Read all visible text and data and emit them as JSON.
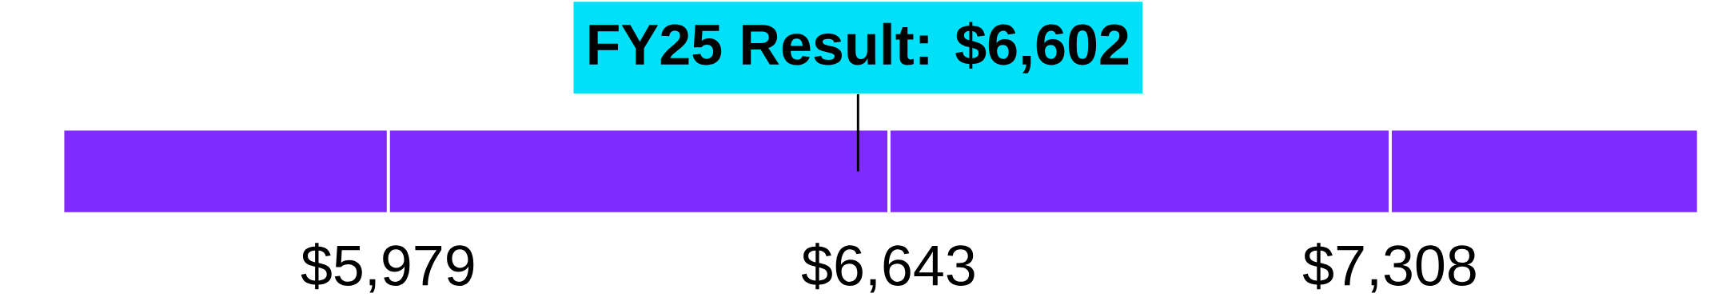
{
  "chart_data": {
    "type": "bar",
    "orientation": "horizontal",
    "categories": [
      null
    ],
    "series": [
      {
        "color": "#7f2bff",
        "base": [
          5547
        ],
        "values": [
          432
        ]
      },
      {
        "color": "#7f2bff",
        "base": [
          5979
        ],
        "values": [
          664
        ]
      },
      {
        "color": "#7f2bff",
        "base": [
          6643
        ],
        "values": [
          665
        ]
      },
      {
        "color": "#7f2bff",
        "base": [
          7308
        ],
        "values": [
          409
        ]
      }
    ],
    "xlim": [
      5547,
      7717
    ],
    "xticks": [
      {
        "value": 5979,
        "label": "$5,979"
      },
      {
        "value": 6643,
        "label": "$6,643"
      },
      {
        "value": 7308,
        "label": "$7,308"
      }
    ],
    "ref_lines": [
      {
        "axis": "x",
        "value": 6602,
        "label": "FY25 Result: $6,602",
        "color": "#000000"
      }
    ]
  }
}
